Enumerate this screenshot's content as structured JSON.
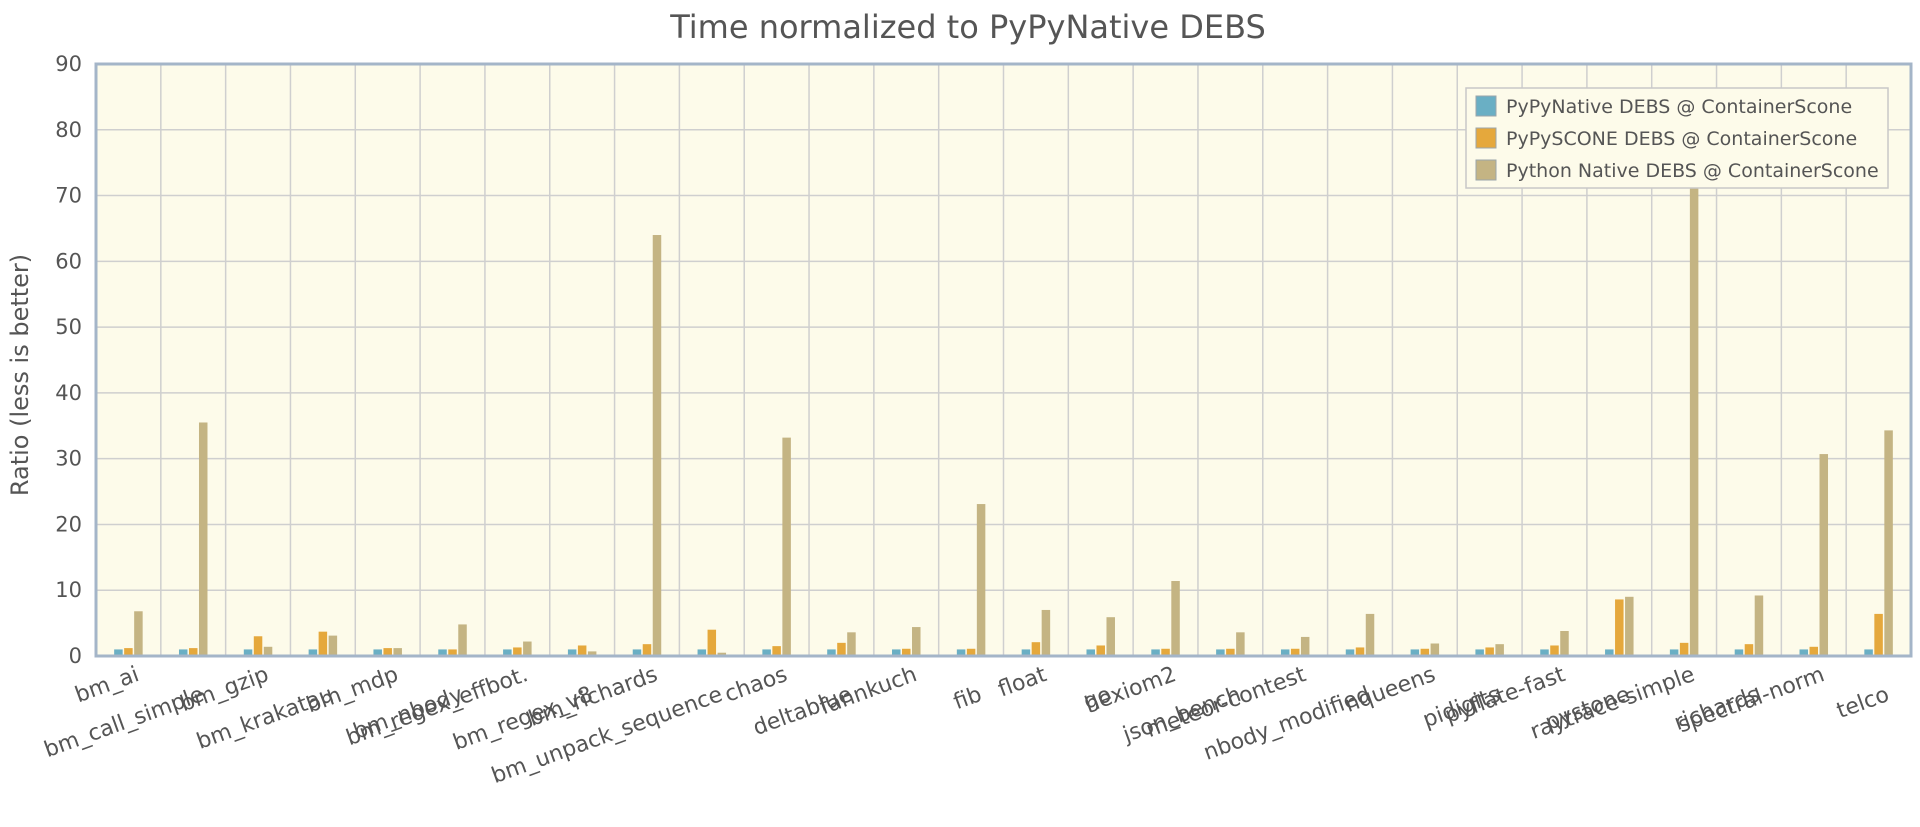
{
  "chart_data": {
    "type": "bar",
    "title": "Time normalized to PyPyNative DEBS",
    "xlabel": "",
    "ylabel": "Ratio  (less is better)",
    "ylim": [
      0,
      90
    ],
    "yticks": [
      0,
      10,
      20,
      30,
      40,
      50,
      60,
      70,
      80,
      90
    ],
    "grid": true,
    "legend_position": "top-right",
    "categories": [
      "bm_ai",
      "bm_call_simple",
      "bm_gzip",
      "bm_krakatau",
      "bm_mdp",
      "bm_nbody",
      "bm_regex_effbot.",
      "bm_regex_v8",
      "bm_richards",
      "bm_unpack_sequence",
      "chaos",
      "deltablue",
      "fannkuch",
      "fib",
      "float",
      "go",
      "hexiom2",
      "json_bench",
      "meteor-contest",
      "nbody_modified",
      "nqueens",
      "pidigits",
      "pyflate-fast",
      "pystone",
      "raytrace-simple",
      "richards",
      "spectral-norm",
      "telco"
    ],
    "series": [
      {
        "name": "PyPyNative DEBS @ ContainerScone",
        "color": "#6aafc4",
        "values": [
          1,
          1,
          1,
          1,
          1,
          1,
          1,
          1,
          1,
          1,
          1,
          1,
          1,
          1,
          1,
          1,
          1,
          1,
          1,
          1,
          1,
          1,
          1,
          1,
          1,
          1,
          1,
          1
        ]
      },
      {
        "name": "PyPySCONE DEBS @ ContainerScone",
        "color": "#e5a83c",
        "values": [
          1.2,
          1.2,
          3.0,
          3.7,
          1.2,
          1.0,
          1.3,
          1.6,
          1.8,
          4.0,
          1.5,
          2.0,
          1.1,
          1.1,
          2.1,
          1.6,
          1.1,
          1.1,
          1.1,
          1.3,
          1.1,
          1.3,
          1.6,
          8.6,
          2.0,
          1.8,
          1.4,
          6.4
        ]
      },
      {
        "name": "Python Native DEBS @ ContainerScone",
        "color": "#c4b483",
        "values": [
          6.8,
          35.5,
          1.4,
          3.1,
          1.2,
          4.8,
          2.2,
          0.7,
          64.0,
          0.5,
          33.2,
          3.6,
          4.4,
          23.1,
          7.0,
          5.9,
          11.4,
          3.6,
          2.9,
          6.4,
          1.9,
          1.8,
          3.8,
          9.0,
          81.0,
          9.2,
          30.7,
          34.3
        ]
      }
    ]
  }
}
